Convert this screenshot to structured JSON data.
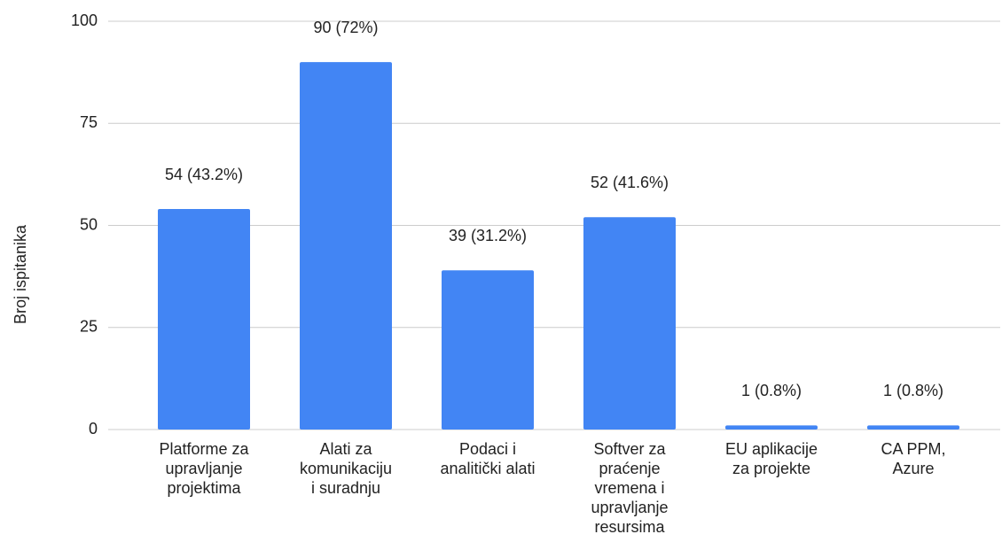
{
  "chart_data": {
    "type": "bar",
    "y_label": "Broj ispitanika",
    "categories": [
      "Platforme za\nupravljanje\nprojektima",
      "Alati za\nkomunikaciju\ni suradnju",
      "Podaci i\nanalitički alati",
      "Softver za\npraćenje\nvremena i\nupravljanje\nresursima",
      "EU aplikacije\nza projekte",
      "CA PPM,\nAzure"
    ],
    "values": [
      54,
      90,
      39,
      52,
      1,
      1
    ],
    "value_labels": [
      "54 (43.2%)",
      "90 (72%)",
      "39 (31.2%)",
      "52 (41.6%)",
      "1 (0.8%)",
      "1 (0.8%)"
    ],
    "color": "#4285f4",
    "ylim": [
      0,
      100
    ],
    "yticks": [
      0,
      25,
      50,
      75,
      100
    ],
    "grid": true
  }
}
